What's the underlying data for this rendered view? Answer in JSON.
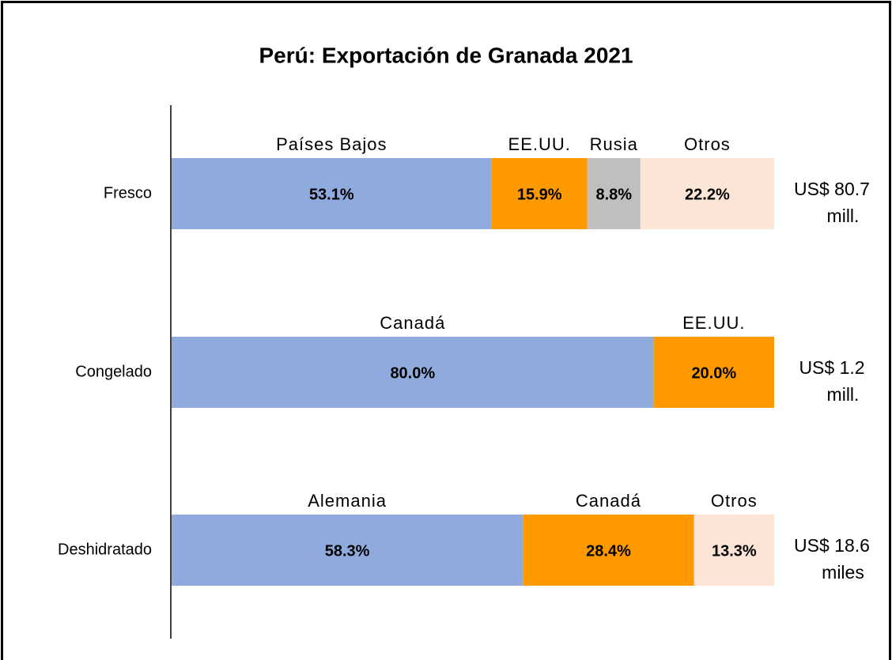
{
  "chart_data": {
    "type": "bar",
    "orientation": "horizontal",
    "stacked": true,
    "title": "Perú: Exportación de Granada 2021",
    "xlim": [
      0,
      100
    ],
    "categories": [
      "Fresco",
      "Congelado",
      "Deshidratado"
    ],
    "rows": [
      {
        "segments": [
          {
            "name": "Países Bajos",
            "color": "#8faadc",
            "value": 53.1,
            "value_label": "53.1%"
          },
          {
            "name": "EE.UU.",
            "color": "#ff9900",
            "value": 15.9,
            "value_label": "15.9%"
          },
          {
            "name": "Rusia",
            "color": "#bfbfbf",
            "value": 8.8,
            "value_label": "8.8%"
          },
          {
            "name": "Otros",
            "color": "#fbe5d6",
            "value": 22.2,
            "value_label": "22.2%"
          }
        ],
        "total": [
          "US$ 80.7",
          "mill."
        ]
      },
      {
        "segments": [
          {
            "name": "Canadá",
            "color": "#8faadc",
            "value": 80.0,
            "value_label": "80.0%"
          },
          {
            "name": "EE.UU.",
            "color": "#ff9900",
            "value": 20.0,
            "value_label": "20.0%"
          }
        ],
        "total": [
          "US$ 1.2",
          "mill."
        ]
      },
      {
        "segments": [
          {
            "name": "Alemania",
            "color": "#8faadc",
            "value": 58.3,
            "value_label": "58.3%"
          },
          {
            "name": "Canadá",
            "color": "#ff9900",
            "value": 28.4,
            "value_label": "28.4%"
          },
          {
            "name": "Otros",
            "color": "#fbe5d6",
            "value": 13.3,
            "value_label": "13.3%"
          }
        ],
        "total": [
          "US$ 18.6",
          "miles"
        ]
      }
    ]
  }
}
